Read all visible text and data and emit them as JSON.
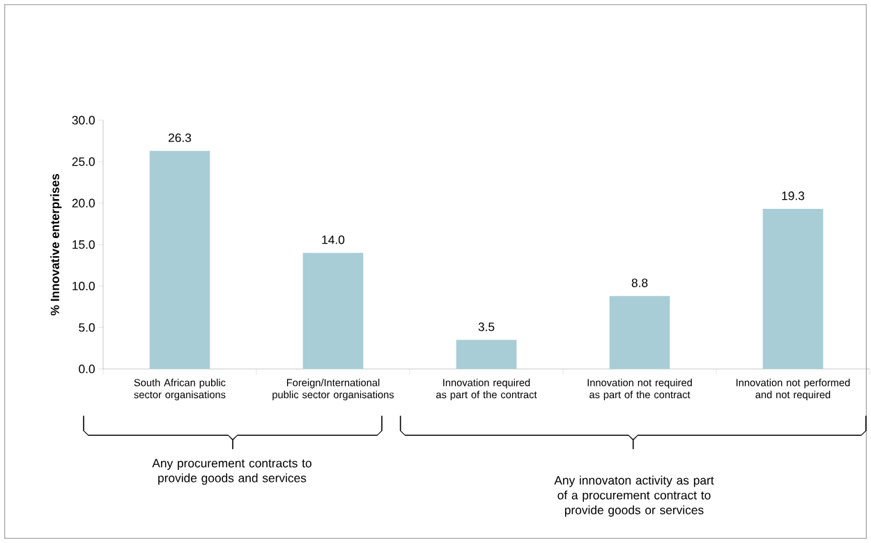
{
  "chart_data": {
    "type": "bar",
    "ylabel": "% Innovative enterprises",
    "categories": [
      "South African public sector organisations",
      "Foreign/International public sector organisations",
      "Innovation required as part of the contract",
      "Innovation not required as part of the contract",
      "Innovation not performed and not required"
    ],
    "values": [
      26.3,
      14.0,
      3.5,
      8.8,
      19.3
    ],
    "value_labels": [
      "26.3",
      "14.0",
      "3.5",
      "8.8",
      "19.3"
    ],
    "color": "#a9cdd6",
    "ylim": [
      0,
      30
    ],
    "yticks": [
      {
        "value": 0,
        "label": "0.0"
      },
      {
        "value": 5,
        "label": "5.0"
      },
      {
        "value": 10,
        "label": "10.0"
      },
      {
        "value": 15,
        "label": "15.0"
      },
      {
        "value": 20,
        "label": "20.0"
      },
      {
        "value": 25,
        "label": "25.0"
      },
      {
        "value": 30,
        "label": "30.0"
      }
    ],
    "annotations": [
      "Any procurement contracts to provide goods and services",
      "Any innovaton activity as part of a procurement contract to provide goods or services"
    ]
  }
}
